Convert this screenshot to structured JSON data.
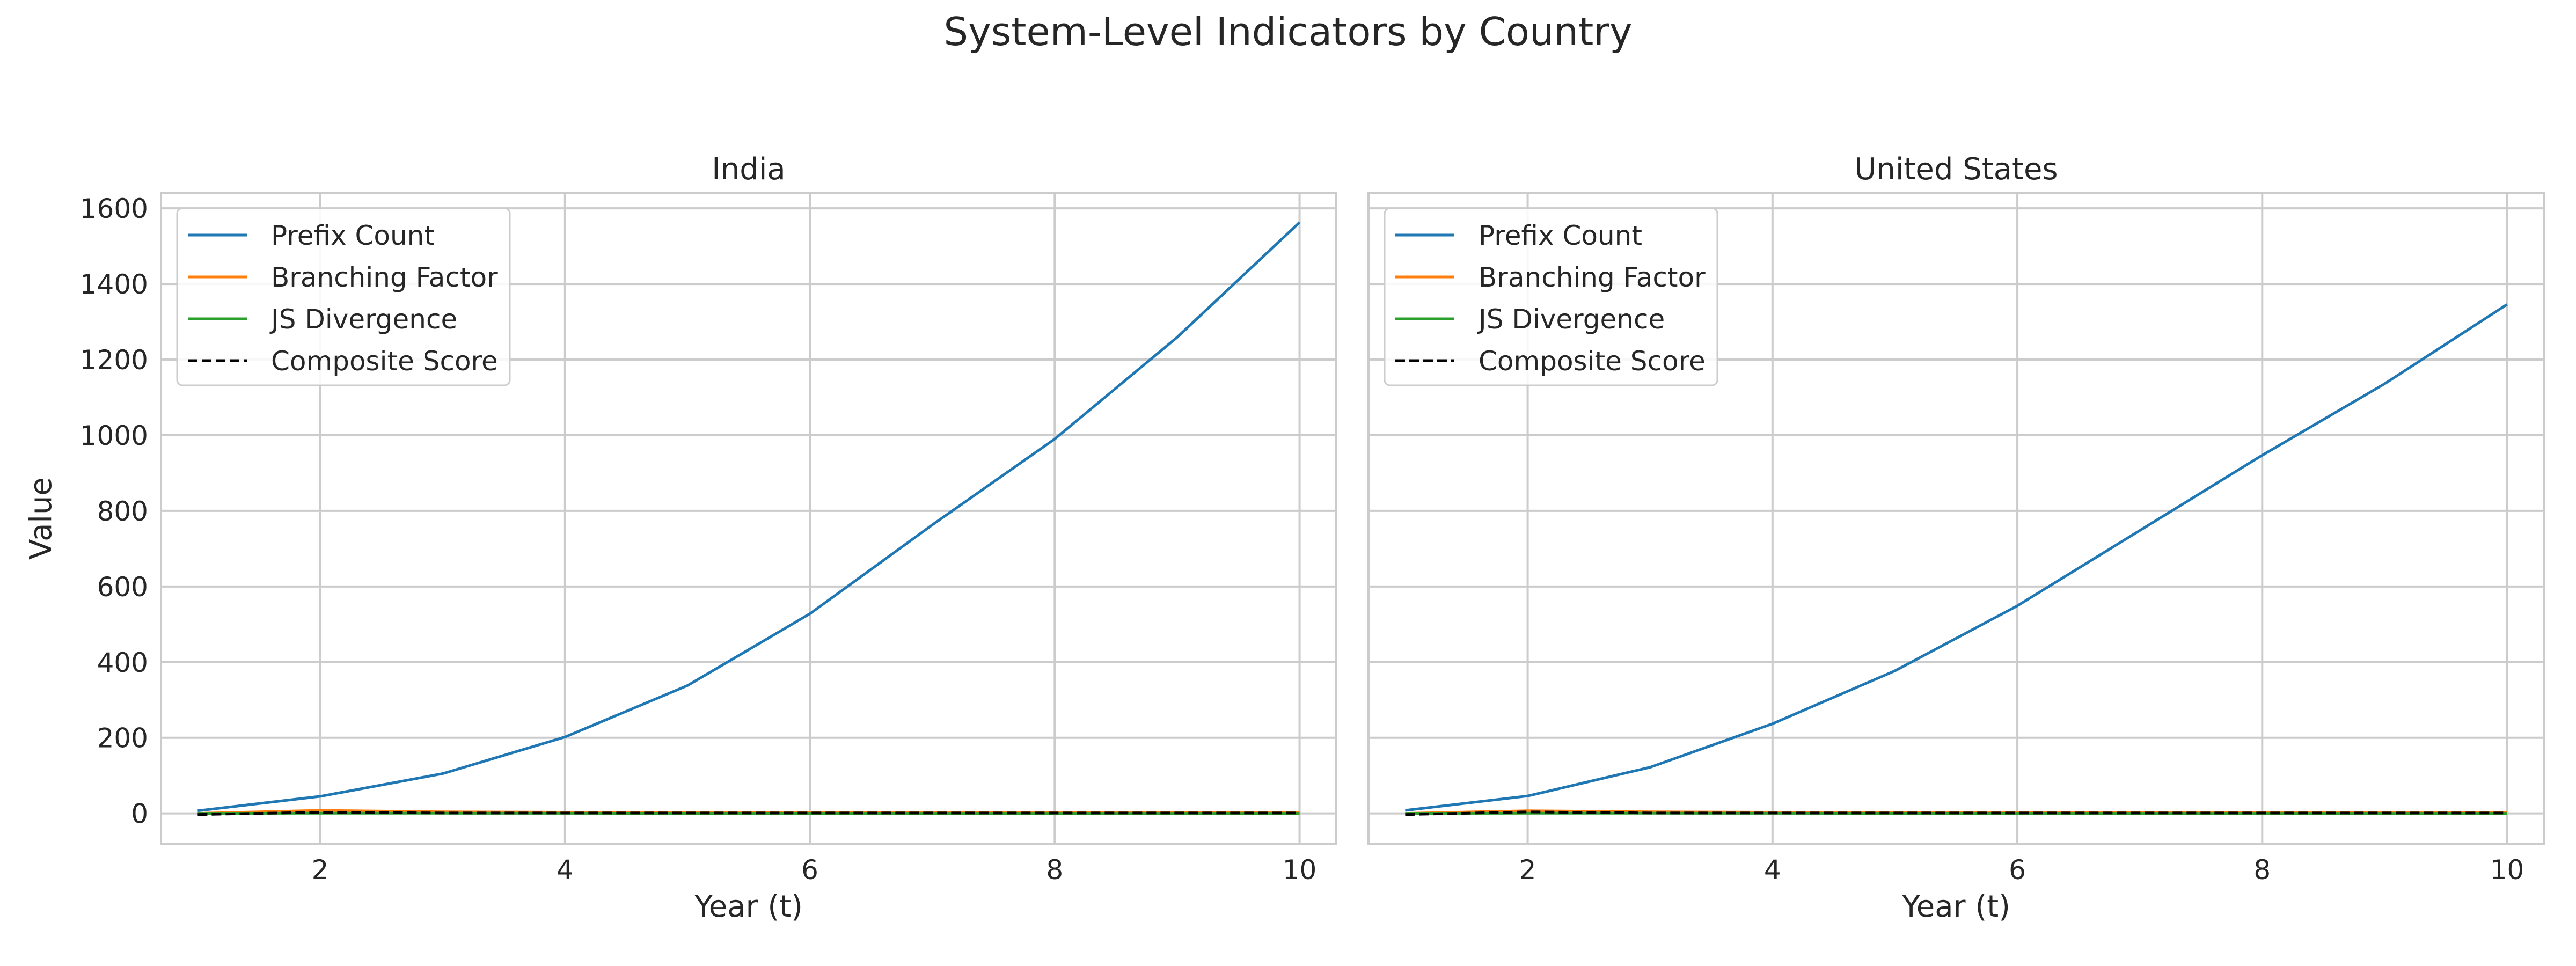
{
  "figure": {
    "title": "System-Level Indicators by Country"
  },
  "chart_data": [
    {
      "type": "line",
      "title": "India",
      "xlabel": "Year (t)",
      "ylabel": "Value",
      "xlim": [
        0.7,
        10.3
      ],
      "ylim": [
        -80,
        1640
      ],
      "xticks": [
        2,
        4,
        6,
        8,
        10
      ],
      "yticks": [
        0,
        200,
        400,
        600,
        800,
        1000,
        1200,
        1400,
        1600
      ],
      "grid": true,
      "legend": "upper left",
      "x": [
        1,
        2,
        3,
        4,
        5,
        6,
        7,
        8,
        9,
        10
      ],
      "series": [
        {
          "name": "Prefix Count",
          "color": "#1f77b4",
          "dash": "solid",
          "values": [
            7,
            45,
            105,
            202,
            338,
            528,
            763,
            990,
            1259,
            1563
          ]
        },
        {
          "name": "Branching Factor",
          "color": "#ff7f0e",
          "dash": "solid",
          "values": [
            0,
            8,
            4,
            3,
            3,
            2,
            2,
            2,
            2,
            2
          ]
        },
        {
          "name": "JS Divergence",
          "color": "#2ca02c",
          "dash": "solid",
          "values": [
            0,
            0.5,
            0.4,
            0.3,
            0.2,
            0.2,
            0.1,
            0.1,
            0.1,
            0.1
          ]
        },
        {
          "name": "Composite Score",
          "color": "#000000",
          "dash": "dashed",
          "values": [
            -3,
            3,
            1,
            1,
            1,
            1,
            1,
            1,
            1,
            1
          ]
        }
      ]
    },
    {
      "type": "line",
      "title": "United States",
      "xlabel": "Year (t)",
      "ylabel": "",
      "xlim": [
        0.7,
        10.3
      ],
      "ylim": [
        -80,
        1640
      ],
      "xticks": [
        2,
        4,
        6,
        8,
        10
      ],
      "yticks": [
        0,
        200,
        400,
        600,
        800,
        1000,
        1200,
        1400,
        1600
      ],
      "grid": true,
      "legend": "upper left",
      "x": [
        1,
        2,
        3,
        4,
        5,
        6,
        7,
        8,
        9,
        10
      ],
      "series": [
        {
          "name": "Prefix Count",
          "color": "#1f77b4",
          "dash": "solid",
          "values": [
            8,
            46,
            122,
            237,
            377,
            549,
            748,
            947,
            1136,
            1346
          ]
        },
        {
          "name": "Branching Factor",
          "color": "#ff7f0e",
          "dash": "solid",
          "values": [
            0,
            7,
            4,
            3,
            2,
            2,
            2,
            2,
            2,
            2
          ]
        },
        {
          "name": "JS Divergence",
          "color": "#2ca02c",
          "dash": "solid",
          "values": [
            0,
            0.5,
            0.4,
            0.3,
            0.2,
            0.2,
            0.1,
            0.1,
            0.1,
            0.1
          ]
        },
        {
          "name": "Composite Score",
          "color": "#000000",
          "dash": "dashed",
          "values": [
            -3,
            4,
            1,
            1,
            1,
            1,
            1,
            1,
            1,
            1
          ]
        }
      ]
    }
  ]
}
